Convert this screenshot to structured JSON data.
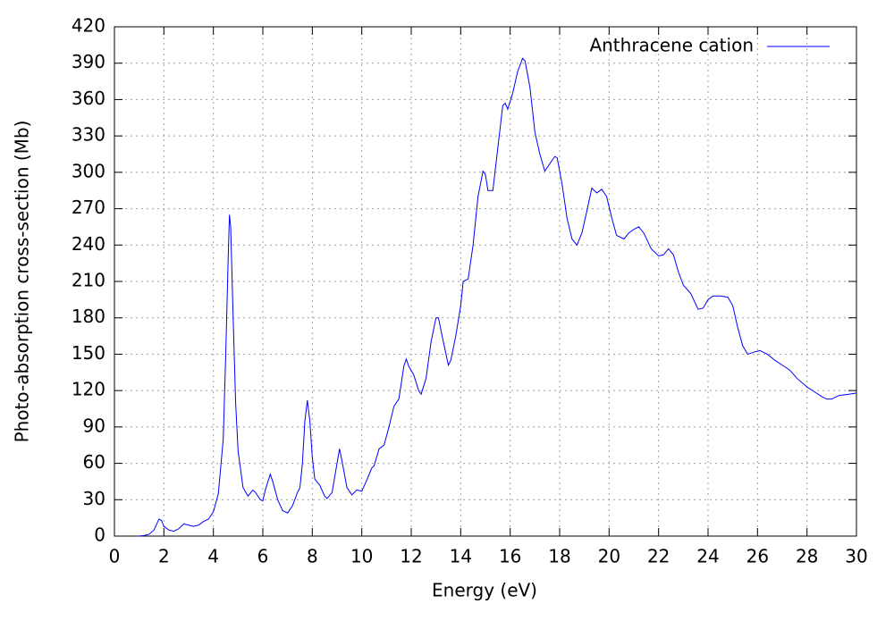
{
  "chart_data": {
    "type": "line",
    "xlabel": "Energy (eV)",
    "ylabel": "Photo-absorption cross-section (Mb)",
    "xlim": [
      0,
      30
    ],
    "xticks": [
      0,
      2,
      4,
      6,
      8,
      10,
      12,
      14,
      16,
      18,
      20,
      22,
      24,
      26,
      28,
      30
    ],
    "ylim": [
      0,
      420
    ],
    "yticks": [
      0,
      30,
      60,
      90,
      120,
      150,
      180,
      210,
      240,
      270,
      300,
      330,
      360,
      390,
      420
    ],
    "grid": true,
    "legend": "top-right",
    "series": [
      {
        "name": "Anthracene cation",
        "color": "#0000ff",
        "x": [
          1.0,
          1.2,
          1.4,
          1.6,
          1.8,
          1.9,
          2.0,
          2.2,
          2.4,
          2.6,
          2.8,
          3.0,
          3.2,
          3.4,
          3.6,
          3.8,
          4.0,
          4.2,
          4.4,
          4.5,
          4.6,
          4.65,
          4.7,
          4.8,
          4.9,
          5.0,
          5.2,
          5.4,
          5.6,
          5.7,
          5.9,
          6.0,
          6.1,
          6.3,
          6.4,
          6.6,
          6.8,
          7.0,
          7.2,
          7.4,
          7.5,
          7.6,
          7.7,
          7.8,
          7.9,
          8.0,
          8.1,
          8.3,
          8.5,
          8.6,
          8.8,
          9.0,
          9.1,
          9.2,
          9.4,
          9.6,
          9.8,
          10.0,
          10.2,
          10.4,
          10.5,
          10.7,
          10.9,
          11.1,
          11.3,
          11.5,
          11.7,
          11.8,
          11.9,
          12.1,
          12.3,
          12.4,
          12.6,
          12.8,
          13.0,
          13.1,
          13.3,
          13.5,
          13.6,
          13.8,
          14.0,
          14.1,
          14.3,
          14.5,
          14.7,
          14.9,
          15.0,
          15.1,
          15.3,
          15.5,
          15.7,
          15.8,
          15.9,
          16.1,
          16.3,
          16.5,
          16.6,
          16.8,
          17.0,
          17.2,
          17.4,
          17.6,
          17.8,
          17.9,
          18.1,
          18.3,
          18.5,
          18.7,
          18.9,
          19.1,
          19.3,
          19.5,
          19.7,
          19.9,
          20.1,
          20.3,
          20.6,
          20.8,
          21.0,
          21.2,
          21.4,
          21.7,
          22.0,
          22.2,
          22.4,
          22.6,
          22.8,
          23.0,
          23.3,
          23.6,
          23.8,
          24.0,
          24.2,
          24.5,
          24.8,
          25.0,
          25.2,
          25.4,
          25.6,
          25.9,
          26.1,
          26.4,
          26.7,
          27.0,
          27.3,
          27.6,
          28.0,
          28.3,
          28.6,
          28.8,
          29.0,
          29.3,
          29.7,
          30.0
        ],
        "values": [
          0,
          0.5,
          1.5,
          5,
          14,
          13,
          8,
          5,
          4,
          6,
          10,
          9,
          8,
          9,
          12,
          14,
          20,
          35,
          80,
          150,
          230,
          265,
          255,
          180,
          110,
          70,
          40,
          33,
          38,
          36,
          30,
          29,
          38,
          51,
          45,
          30,
          21,
          19,
          25,
          36,
          40,
          60,
          95,
          112,
          95,
          65,
          47,
          42,
          33,
          31,
          36,
          60,
          72,
          62,
          40,
          34,
          38,
          37,
          46,
          56,
          58,
          72,
          75,
          90,
          107,
          113,
          140,
          146,
          140,
          133,
          120,
          117,
          130,
          160,
          180,
          180,
          160,
          141,
          145,
          165,
          190,
          210,
          212,
          240,
          280,
          301,
          298,
          285,
          285,
          320,
          355,
          357,
          352,
          365,
          383,
          394,
          392,
          370,
          333,
          315,
          301,
          307,
          313,
          312,
          290,
          262,
          245,
          240,
          250,
          268,
          287,
          283,
          286,
          280,
          263,
          248,
          245,
          250,
          253,
          255,
          250,
          237,
          231,
          232,
          237,
          232,
          218,
          207,
          200,
          187,
          188,
          195,
          198,
          198,
          197,
          190,
          172,
          157,
          150,
          152,
          153,
          150,
          145,
          141,
          137,
          130,
          123,
          119,
          115,
          113,
          113,
          116,
          117,
          118
        ]
      }
    ]
  }
}
